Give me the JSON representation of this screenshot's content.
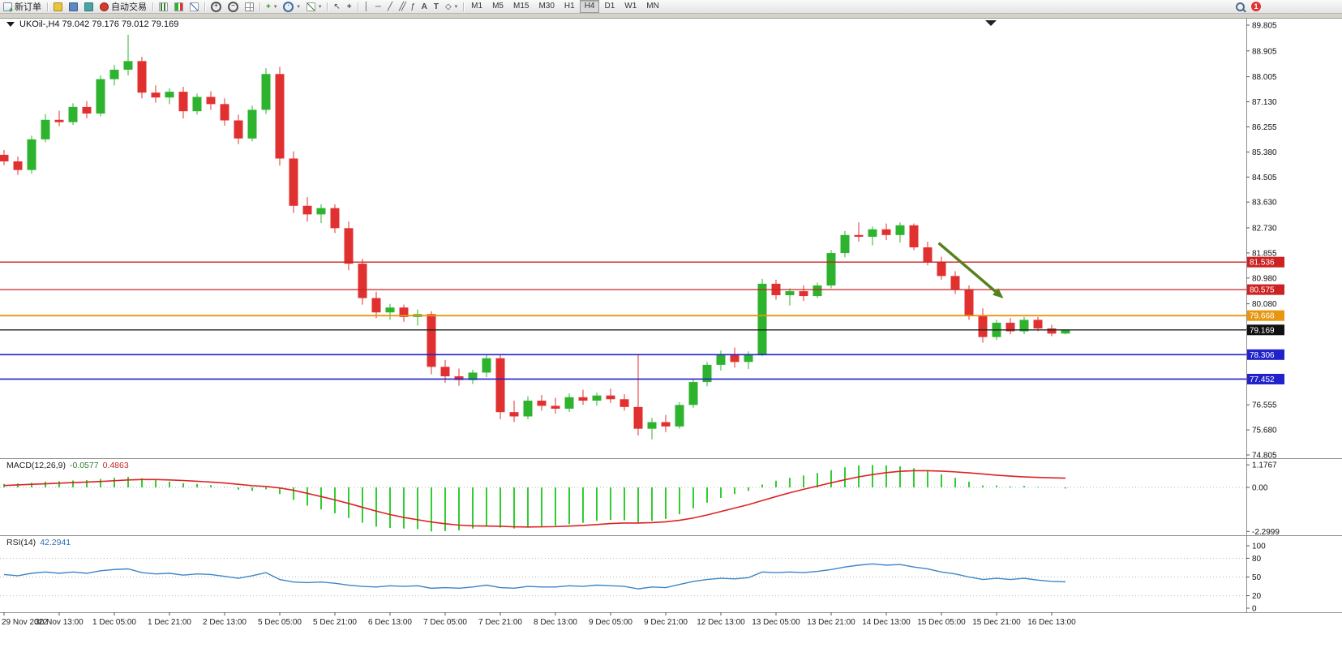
{
  "toolbar": {
    "new_order": "新订单",
    "autotrading": "自动交易",
    "timeframes": [
      "M1",
      "M5",
      "M15",
      "M30",
      "H1",
      "H4",
      "D1",
      "W1",
      "MN"
    ],
    "active_timeframe": "H4",
    "notification_count": "1",
    "tool_labels": {
      "trendline": "╱",
      "vline": "│",
      "hline": "─",
      "channel": "╱╱",
      "fibonacci": "ƒ",
      "text": "A",
      "label": "T",
      "shapes": "◇",
      "cursor": "↖",
      "crosshair": "+",
      "new_chart_plus": "+"
    }
  },
  "chart": {
    "title": "UKOil-,H4 79.042 79.176 79.012 79.169"
  },
  "chart_data": {
    "type": "candlestick",
    "symbol": "UKOil-",
    "timeframe": "H4",
    "current_bar_ohlc": {
      "open": "79.042",
      "high": "79.176",
      "low": "79.012",
      "close": "79.169"
    },
    "price_axis_range": [
      74.805,
      89.805
    ],
    "price_axis_labels": [
      "89.805",
      "88.905",
      "88.005",
      "87.130",
      "86.255",
      "85.380",
      "84.505",
      "83.630",
      "82.730",
      "81.855",
      "80.980",
      "80.080",
      "79.205",
      "78.330",
      "77.455",
      "76.555",
      "75.680",
      "74.805"
    ],
    "x_labels": [
      "29 Nov 2022",
      "30 Nov 13:00",
      "1 Dec 05:00",
      "1 Dec 21:00",
      "2 Dec 13:00",
      "5 Dec 05:00",
      "5 Dec 21:00",
      "6 Dec 13:00",
      "7 Dec 05:00",
      "7 Dec 21:00",
      "8 Dec 13:00",
      "9 Dec 05:00",
      "9 Dec 21:00",
      "12 Dec 13:00",
      "13 Dec 05:00",
      "13 Dec 21:00",
      "14 Dec 13:00",
      "15 Dec 05:00",
      "15 Dec 21:00",
      "16 Dec 13:00"
    ],
    "candles": [
      [
        85.28,
        85.45,
        84.92,
        85.05
      ],
      [
        85.05,
        85.22,
        84.58,
        84.75
      ],
      [
        84.75,
        85.95,
        84.62,
        85.82
      ],
      [
        85.82,
        86.7,
        85.72,
        86.5
      ],
      [
        86.5,
        86.82,
        86.28,
        86.42
      ],
      [
        86.42,
        87.08,
        86.32,
        86.95
      ],
      [
        86.95,
        87.15,
        86.55,
        86.72
      ],
      [
        86.72,
        88.05,
        86.62,
        87.92
      ],
      [
        87.92,
        88.42,
        87.7,
        88.25
      ],
      [
        88.25,
        89.47,
        88.05,
        88.55
      ],
      [
        88.55,
        88.7,
        87.25,
        87.45
      ],
      [
        87.45,
        87.7,
        87.1,
        87.28
      ],
      [
        87.28,
        87.6,
        87.05,
        87.48
      ],
      [
        87.48,
        87.65,
        86.55,
        86.8
      ],
      [
        86.8,
        87.42,
        86.68,
        87.3
      ],
      [
        87.3,
        87.5,
        86.85,
        87.05
      ],
      [
        87.05,
        87.25,
        86.3,
        86.48
      ],
      [
        86.48,
        86.68,
        85.65,
        85.85
      ],
      [
        85.85,
        87.0,
        85.75,
        86.85
      ],
      [
        86.85,
        88.3,
        86.7,
        88.1
      ],
      [
        88.1,
        88.35,
        84.9,
        85.15
      ],
      [
        85.15,
        85.4,
        83.25,
        83.5
      ],
      [
        83.5,
        83.8,
        82.95,
        83.2
      ],
      [
        83.2,
        83.55,
        82.9,
        83.42
      ],
      [
        83.42,
        83.55,
        82.55,
        82.72
      ],
      [
        82.72,
        82.95,
        81.25,
        81.48
      ],
      [
        81.48,
        81.65,
        80.05,
        80.28
      ],
      [
        80.28,
        80.5,
        79.58,
        79.78
      ],
      [
        79.78,
        80.08,
        79.52,
        79.95
      ],
      [
        79.95,
        80.05,
        79.45,
        79.62
      ],
      [
        79.62,
        79.88,
        79.32,
        79.72
      ],
      [
        79.72,
        79.82,
        77.62,
        77.88
      ],
      [
        77.88,
        78.12,
        77.32,
        77.55
      ],
      [
        77.55,
        77.82,
        77.22,
        77.42
      ],
      [
        77.42,
        77.78,
        77.28,
        77.68
      ],
      [
        77.68,
        78.32,
        77.52,
        78.18
      ],
      [
        78.18,
        78.3,
        76.05,
        76.3
      ],
      [
        76.3,
        76.7,
        75.95,
        76.15
      ],
      [
        76.15,
        76.85,
        76.05,
        76.7
      ],
      [
        76.7,
        76.9,
        76.35,
        76.52
      ],
      [
        76.52,
        76.8,
        76.25,
        76.42
      ],
      [
        76.42,
        76.95,
        76.3,
        76.82
      ],
      [
        76.82,
        77.08,
        76.55,
        76.7
      ],
      [
        76.7,
        76.98,
        76.52,
        76.88
      ],
      [
        76.88,
        77.12,
        76.62,
        76.75
      ],
      [
        76.75,
        76.92,
        76.35,
        76.48
      ],
      [
        76.48,
        78.3,
        75.48,
        75.72
      ],
      [
        75.72,
        76.1,
        75.35,
        75.95
      ],
      [
        75.95,
        76.2,
        75.6,
        75.8
      ],
      [
        75.8,
        76.65,
        75.72,
        76.55
      ],
      [
        76.55,
        77.45,
        76.45,
        77.35
      ],
      [
        77.35,
        78.05,
        77.2,
        77.95
      ],
      [
        77.95,
        78.45,
        77.75,
        78.3
      ],
      [
        78.3,
        78.55,
        77.85,
        78.05
      ],
      [
        78.05,
        78.42,
        77.8,
        78.32
      ],
      [
        78.32,
        80.95,
        78.25,
        80.78
      ],
      [
        80.78,
        80.92,
        80.22,
        80.38
      ],
      [
        80.38,
        80.62,
        80.02,
        80.52
      ],
      [
        80.52,
        80.72,
        80.18,
        80.35
      ],
      [
        80.35,
        80.82,
        80.28,
        80.72
      ],
      [
        80.72,
        81.95,
        80.62,
        81.85
      ],
      [
        81.85,
        82.62,
        81.7,
        82.48
      ],
      [
        82.48,
        82.92,
        82.25,
        82.42
      ],
      [
        82.42,
        82.78,
        82.12,
        82.68
      ],
      [
        82.68,
        82.88,
        82.3,
        82.48
      ],
      [
        82.48,
        82.92,
        82.22,
        82.82
      ],
      [
        82.82,
        82.88,
        81.95,
        82.05
      ],
      [
        82.05,
        82.25,
        81.42,
        81.55
      ],
      [
        81.55,
        81.72,
        80.92,
        81.05
      ],
      [
        81.05,
        81.22,
        80.42,
        80.58
      ],
      [
        80.58,
        80.72,
        79.52,
        79.65
      ],
      [
        79.65,
        79.92,
        78.72,
        78.92
      ],
      [
        78.92,
        79.52,
        78.82,
        79.42
      ],
      [
        79.42,
        79.58,
        79.02,
        79.12
      ],
      [
        79.12,
        79.62,
        79.02,
        79.52
      ],
      [
        79.52,
        79.62,
        79.12,
        79.22
      ],
      [
        79.22,
        79.35,
        78.95,
        79.04
      ],
      [
        79.042,
        79.176,
        79.012,
        79.169
      ]
    ],
    "hlines": [
      {
        "price": 81.536,
        "label": "81.536",
        "color": "#cc2222",
        "tag_bg": "#cc2222",
        "width": 1.3
      },
      {
        "price": 80.575,
        "label": "80.575",
        "color": "#cc2222",
        "tag_bg": "#cc2222",
        "width": 1.3
      },
      {
        "price": 79.668,
        "label": "79.668",
        "color": "#e8960f",
        "tag_bg": "#e8960f",
        "width": 1.8
      },
      {
        "price": 79.169,
        "label": "79.169",
        "color": "#222222",
        "tag_bg": "#111111",
        "width": 1.3
      },
      {
        "price": 78.306,
        "label": "78.306",
        "color": "#2222cc",
        "tag_bg": "#2222cc",
        "width": 1.6
      },
      {
        "price": 77.452,
        "label": "77.452",
        "color": "#2222cc",
        "tag_bg": "#2222cc",
        "width": 1.6
      }
    ],
    "current_price": "79.169",
    "arrow_annotation": {
      "from_bar": 67.8,
      "from_price": 82.2,
      "to_bar": 72.5,
      "to_price": 80.27,
      "color": "#56821e"
    },
    "macd": {
      "name": "MACD(12,26,9)",
      "value_main": "-0.0577",
      "value_signal": "0.4863",
      "axis_labels": [
        "1.1767",
        "0.00",
        "-2.2999"
      ],
      "range": [
        -2.2999,
        1.1767
      ],
      "histogram": [
        0.18,
        0.2,
        0.24,
        0.3,
        0.32,
        0.36,
        0.38,
        0.44,
        0.5,
        0.55,
        0.48,
        0.38,
        0.3,
        0.22,
        0.18,
        0.12,
        0.02,
        -0.12,
        -0.18,
        -0.1,
        -0.35,
        -0.65,
        -0.95,
        -1.15,
        -1.35,
        -1.6,
        -1.85,
        -2.05,
        -2.12,
        -2.15,
        -2.18,
        -2.3,
        -2.28,
        -2.25,
        -2.15,
        -2.05,
        -2.1,
        -2.15,
        -2.1,
        -2.05,
        -2.0,
        -1.92,
        -1.85,
        -1.75,
        -1.7,
        -1.72,
        -1.85,
        -1.75,
        -1.65,
        -1.4,
        -1.1,
        -0.8,
        -0.55,
        -0.35,
        -0.18,
        0.15,
        0.35,
        0.5,
        0.62,
        0.75,
        0.9,
        1.05,
        1.15,
        1.17,
        1.15,
        1.1,
        1.0,
        0.85,
        0.68,
        0.5,
        0.3,
        0.1,
        0.1,
        0.05,
        0.08,
        0.03,
        0.0,
        -0.0577
      ],
      "signal": [
        0.1,
        0.13,
        0.16,
        0.19,
        0.22,
        0.25,
        0.28,
        0.31,
        0.35,
        0.39,
        0.41,
        0.41,
        0.39,
        0.36,
        0.32,
        0.28,
        0.23,
        0.16,
        0.09,
        0.05,
        -0.03,
        -0.15,
        -0.31,
        -0.48,
        -0.65,
        -0.84,
        -1.04,
        -1.24,
        -1.42,
        -1.57,
        -1.69,
        -1.81,
        -1.9,
        -1.97,
        -2.01,
        -2.02,
        -2.03,
        -2.06,
        -2.07,
        -2.06,
        -2.05,
        -2.02,
        -1.99,
        -1.94,
        -1.89,
        -1.86,
        -1.86,
        -1.84,
        -1.8,
        -1.72,
        -1.6,
        -1.44,
        -1.26,
        -1.08,
        -0.9,
        -0.69,
        -0.48,
        -0.28,
        -0.1,
        0.07,
        0.24,
        0.4,
        0.55,
        0.67,
        0.77,
        0.84,
        0.87,
        0.87,
        0.85,
        0.81,
        0.76,
        0.7,
        0.64,
        0.59,
        0.55,
        0.52,
        0.5,
        0.4863
      ]
    },
    "rsi": {
      "name": "RSI(14)",
      "value": "42.2941",
      "axis_labels": [
        "100",
        "80",
        "50",
        "20",
        "0"
      ],
      "levels": [
        80,
        50,
        20
      ],
      "range": [
        0,
        100
      ],
      "values": [
        54,
        52,
        56,
        58,
        56,
        58,
        56,
        60,
        62,
        63,
        57,
        55,
        56,
        53,
        55,
        54,
        51,
        48,
        52,
        57,
        46,
        42,
        41,
        42,
        40,
        37,
        35,
        34,
        36,
        35,
        36,
        32,
        33,
        32,
        34,
        37,
        33,
        32,
        35,
        34,
        34,
        36,
        35,
        37,
        36,
        35,
        31,
        34,
        33,
        38,
        43,
        46,
        48,
        47,
        49,
        58,
        57,
        58,
        57,
        59,
        62,
        66,
        69,
        71,
        69,
        70,
        66,
        63,
        58,
        55,
        50,
        46,
        48,
        46,
        48,
        45,
        43,
        42.2941
      ]
    },
    "colors": {
      "up": "#2db32d",
      "down": "#e03030",
      "macd_hist": "#32cd32",
      "macd_signal": "#dd2222",
      "rsi_line": "#3d85c8"
    }
  }
}
